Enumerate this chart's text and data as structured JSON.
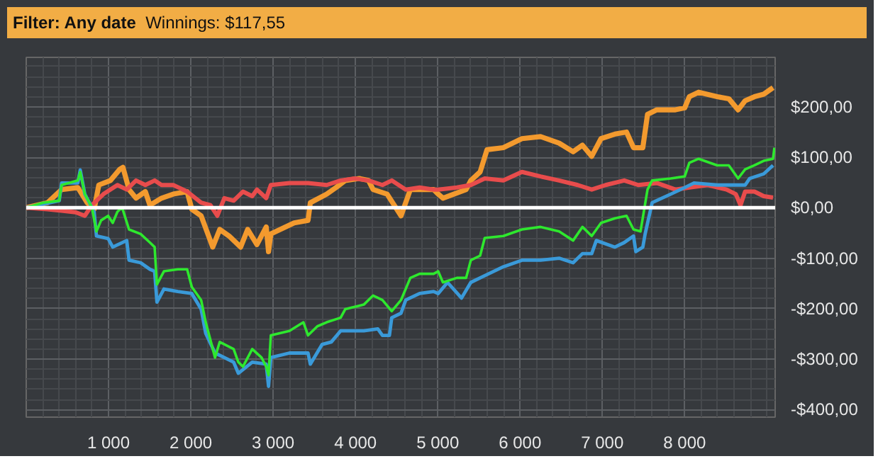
{
  "chart_data": {
    "type": "line",
    "title": "Filter: Any date",
    "subtitle": "Winnings: $117,55",
    "xlim": [
      0,
      9100
    ],
    "ylim": [
      -415,
      298
    ],
    "xticks": [
      {
        "value": 1000,
        "label": "1 000"
      },
      {
        "value": 2000,
        "label": "2 000"
      },
      {
        "value": 3000,
        "label": "3 000"
      },
      {
        "value": 4000,
        "label": "4 000"
      },
      {
        "value": 5000,
        "label": "5 000"
      },
      {
        "value": 6000,
        "label": "6 000"
      },
      {
        "value": 7000,
        "label": "7 000"
      },
      {
        "value": 8000,
        "label": "8 000"
      }
    ],
    "yticks": [
      {
        "value": -400,
        "label": "-$400,00"
      },
      {
        "value": -300,
        "label": "-$300,00"
      },
      {
        "value": -200,
        "label": "-$200,00"
      },
      {
        "value": -100,
        "label": "-$100,00"
      },
      {
        "value": 0,
        "label": "$0,00"
      },
      {
        "value": 100,
        "label": "$100,00"
      },
      {
        "value": 200,
        "label": "$200,00"
      }
    ],
    "grid": true,
    "marker": "none",
    "line_style": "solid",
    "ref_lines": [
      {
        "axis": "y",
        "value": 0,
        "color": "#ffffff"
      }
    ],
    "series": [
      {
        "color": "#f39a2e",
        "x": [
          0,
          260,
          430,
          627,
          740,
          825,
          882,
          1023,
          1136,
          1175,
          1249,
          1334,
          1447,
          1503,
          1644,
          1786,
          1955,
          2012,
          2125,
          2266,
          2351,
          2464,
          2605,
          2690,
          2803,
          2916,
          2944,
          2972,
          3255,
          3424,
          3452,
          3650,
          3763,
          3876,
          4046,
          4159,
          4215,
          4385,
          4554,
          4667,
          4950,
          5006,
          5063,
          5345,
          5402,
          5515,
          5599,
          5797,
          6023,
          6249,
          6475,
          6645,
          6758,
          6871,
          6984,
          7153,
          7294,
          7379,
          7492,
          7549,
          7662,
          7888,
          8001,
          8057,
          8170,
          8396,
          8537,
          8650,
          8735,
          8848,
          8961,
          9074
        ],
        "values": [
          0,
          10,
          36,
          40,
          10,
          -3,
          45,
          54,
          76,
          80,
          36,
          19,
          32,
          5,
          19,
          27,
          32,
          -3,
          -16,
          -78,
          -43,
          -56,
          -78,
          -43,
          -73,
          -38,
          -87,
          -52,
          -30,
          -25,
          10,
          27,
          40,
          54,
          58,
          54,
          36,
          27,
          -16,
          36,
          36,
          27,
          19,
          36,
          54,
          71,
          115,
          119,
          137,
          141,
          128,
          111,
          124,
          102,
          137,
          146,
          150,
          119,
          119,
          185,
          194,
          194,
          198,
          220,
          229,
          220,
          216,
          194,
          212,
          220,
          225,
          238
        ]
      },
      {
        "color": "#e84c4c",
        "x": [
          0,
          260,
          430,
          600,
          712,
          797,
          938,
          1108,
          1221,
          1334,
          1447,
          1560,
          1644,
          1786,
          1955,
          2125,
          2238,
          2322,
          2407,
          2520,
          2633,
          2746,
          2803,
          2916,
          2972,
          3198,
          3424,
          3650,
          3820,
          3989,
          4159,
          4328,
          4441,
          4611,
          4780,
          4950,
          5006,
          5232,
          5402,
          5571,
          5797,
          6023,
          6249,
          6475,
          6701,
          6871,
          7040,
          7266,
          7436,
          7662,
          7888,
          8057,
          8283,
          8509,
          8622,
          8679,
          8735,
          8848,
          8961,
          9074
        ],
        "values": [
          0,
          -3,
          -6,
          -9,
          -16,
          5,
          27,
          45,
          36,
          54,
          45,
          54,
          45,
          45,
          32,
          10,
          5,
          -16,
          19,
          14,
          32,
          23,
          36,
          19,
          45,
          49,
          49,
          45,
          54,
          58,
          54,
          45,
          54,
          36,
          40,
          36,
          36,
          40,
          45,
          58,
          54,
          71,
          62,
          54,
          45,
          36,
          45,
          54,
          45,
          49,
          36,
          40,
          45,
          36,
          27,
          5,
          32,
          32,
          23,
          20
        ]
      },
      {
        "color": "#3a9ad9",
        "x": [
          0,
          401,
          430,
          627,
          656,
          712,
          825,
          853,
          995,
          1051,
          1221,
          1249,
          1390,
          1503,
          1560,
          1588,
          1673,
          1842,
          2012,
          2125,
          2181,
          2294,
          2407,
          2520,
          2577,
          2746,
          2916,
          2944,
          2972,
          3198,
          3424,
          3452,
          3594,
          3707,
          3820,
          4102,
          4272,
          4328,
          4413,
          4441,
          4554,
          4611,
          4780,
          4950,
          5006,
          5119,
          5289,
          5402,
          5515,
          5797,
          6023,
          6249,
          6475,
          6645,
          6758,
          6871,
          6927,
          7153,
          7266,
          7379,
          7407,
          7492,
          7520,
          7605,
          7831,
          8001,
          8114,
          8396,
          8622,
          8735,
          8791,
          8961,
          9074
        ],
        "values": [
          0,
          14,
          49,
          49,
          75,
          27,
          -8,
          -56,
          -61,
          -78,
          -65,
          -104,
          -109,
          -122,
          -126,
          -187,
          -161,
          -166,
          -170,
          -201,
          -249,
          -288,
          -297,
          -306,
          -328,
          -306,
          -310,
          -354,
          -297,
          -288,
          -288,
          -310,
          -271,
          -266,
          -244,
          -244,
          -240,
          -253,
          -253,
          -218,
          -209,
          -183,
          -170,
          -166,
          -170,
          -148,
          -179,
          -148,
          -139,
          -117,
          -104,
          -104,
          -100,
          -109,
          -91,
          -91,
          -65,
          -78,
          -69,
          -56,
          -87,
          -78,
          -52,
          10,
          27,
          40,
          49,
          45,
          45,
          45,
          58,
          67,
          84
        ]
      },
      {
        "color": "#2ee82e",
        "x": [
          0,
          204,
          401,
          430,
          627,
          656,
          712,
          797,
          853,
          910,
          995,
          1051,
          1108,
          1164,
          1249,
          1390,
          1503,
          1560,
          1588,
          1673,
          1842,
          1955,
          2012,
          2125,
          2181,
          2238,
          2294,
          2351,
          2520,
          2577,
          2633,
          2746,
          2859,
          2916,
          2944,
          2972,
          3198,
          3368,
          3424,
          3537,
          3650,
          3820,
          3876,
          4102,
          4215,
          4328,
          4441,
          4554,
          4667,
          4780,
          4950,
          5006,
          5063,
          5232,
          5345,
          5402,
          5515,
          5571,
          5797,
          6023,
          6249,
          6475,
          6645,
          6758,
          6871,
          6984,
          7153,
          7294,
          7379,
          7464,
          7549,
          7605,
          7831,
          8001,
          8057,
          8170,
          8396,
          8537,
          8650,
          8735,
          8848,
          8961,
          9074,
          9091
        ],
        "values": [
          0,
          10,
          14,
          45,
          54,
          71,
          27,
          1,
          -47,
          -25,
          -16,
          -30,
          -8,
          1,
          -43,
          -52,
          -69,
          -78,
          -152,
          -126,
          -122,
          -122,
          -157,
          -183,
          -227,
          -262,
          -297,
          -266,
          -280,
          -306,
          -315,
          -280,
          -297,
          -315,
          -332,
          -253,
          -244,
          -227,
          -253,
          -235,
          -227,
          -218,
          -201,
          -192,
          -174,
          -183,
          -205,
          -183,
          -139,
          -131,
          -131,
          -126,
          -148,
          -139,
          -139,
          -104,
          -95,
          -60,
          -56,
          -43,
          -38,
          -47,
          -65,
          -38,
          -56,
          -30,
          -21,
          -16,
          -43,
          -47,
          36,
          54,
          58,
          62,
          89,
          97,
          84,
          84,
          58,
          76,
          84,
          93,
          97,
          119
        ]
      }
    ]
  }
}
